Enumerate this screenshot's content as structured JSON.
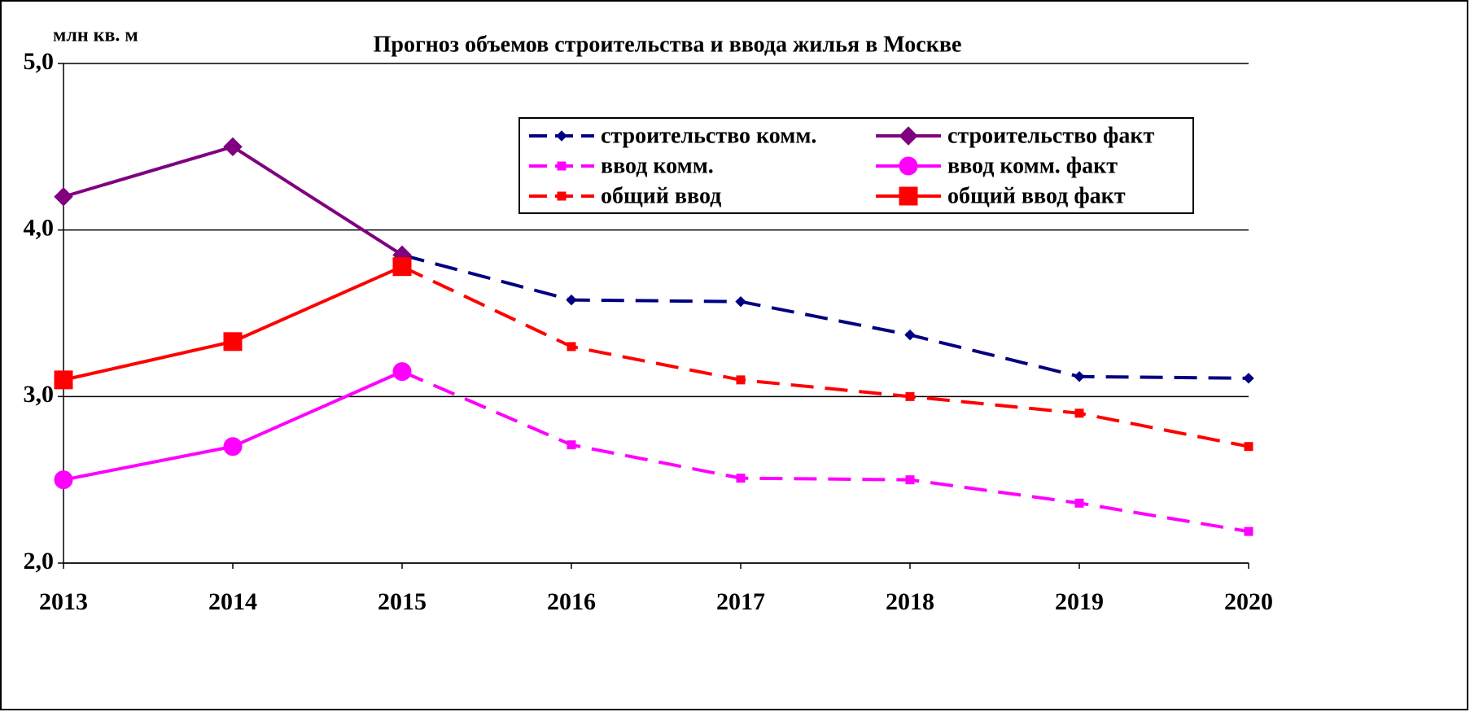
{
  "chart_data": {
    "type": "line",
    "title": "Прогноз объемов строительства и ввода жилья в Москве",
    "y_label": "млн кв. м",
    "categories": [
      "2013",
      "2014",
      "2015",
      "2016",
      "2017",
      "2018",
      "2019",
      "2020"
    ],
    "ylim": [
      2,
      5
    ],
    "yticks": [
      {
        "value": 2,
        "label": "2,0"
      },
      {
        "value": 3,
        "label": "3,0"
      },
      {
        "value": 4,
        "label": "4,0"
      },
      {
        "value": 5,
        "label": "5,0"
      }
    ],
    "grid": true,
    "legend": "top-right",
    "series": [
      {
        "name": "строительство комм.",
        "color": "#000080",
        "dashed": true,
        "marker": "diamond",
        "marker_size": "small",
        "values": [
          null,
          null,
          3.85,
          3.58,
          3.57,
          3.37,
          3.12,
          3.11
        ]
      },
      {
        "name": "строительство факт",
        "color": "#800080",
        "dashed": false,
        "marker": "diamond",
        "marker_size": "large",
        "values": [
          4.2,
          4.5,
          3.85,
          null,
          null,
          null,
          null,
          null
        ]
      },
      {
        "name": "ввод комм.",
        "color": "#ff00ff",
        "dashed": true,
        "marker": "square",
        "marker_size": "small",
        "values": [
          null,
          null,
          3.15,
          2.71,
          2.51,
          2.5,
          2.36,
          2.19
        ]
      },
      {
        "name": "ввод комм. факт",
        "color": "#ff00ff",
        "dashed": false,
        "marker": "circle",
        "marker_size": "large",
        "values": [
          2.5,
          2.7,
          3.15,
          null,
          null,
          null,
          null,
          null
        ]
      },
      {
        "name": "общий ввод",
        "color": "#ff0000",
        "dashed": true,
        "marker": "square",
        "marker_size": "small",
        "values": [
          null,
          null,
          3.78,
          3.3,
          3.1,
          3.0,
          2.9,
          2.7
        ]
      },
      {
        "name": "общий ввод факт",
        "color": "#ff0000",
        "dashed": false,
        "marker": "square",
        "marker_size": "large",
        "values": [
          3.1,
          3.33,
          3.78,
          null,
          null,
          null,
          null,
          null
        ]
      }
    ]
  }
}
